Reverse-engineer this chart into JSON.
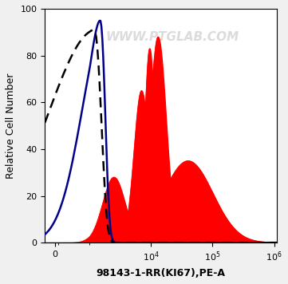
{
  "title": "",
  "watermark": "WWW.PTGLAB.COM",
  "xlabel": "98143-1-RR(KI67),PE-A",
  "ylabel": "Relative Cell Number",
  "ylim": [
    0,
    100
  ],
  "background_color": "#f0f0f0",
  "plot_bg_color": "#ffffff",
  "dashed_color": "#000000",
  "blue_color": "#00008B",
  "red_color": "#FF0000",
  "red_fill_alpha": 1.0,
  "tick_label_fontsize": 8,
  "axis_label_fontsize": 9,
  "watermark_fontsize": 11,
  "watermark_color": "#cccccc",
  "watermark_alpha": 0.7
}
